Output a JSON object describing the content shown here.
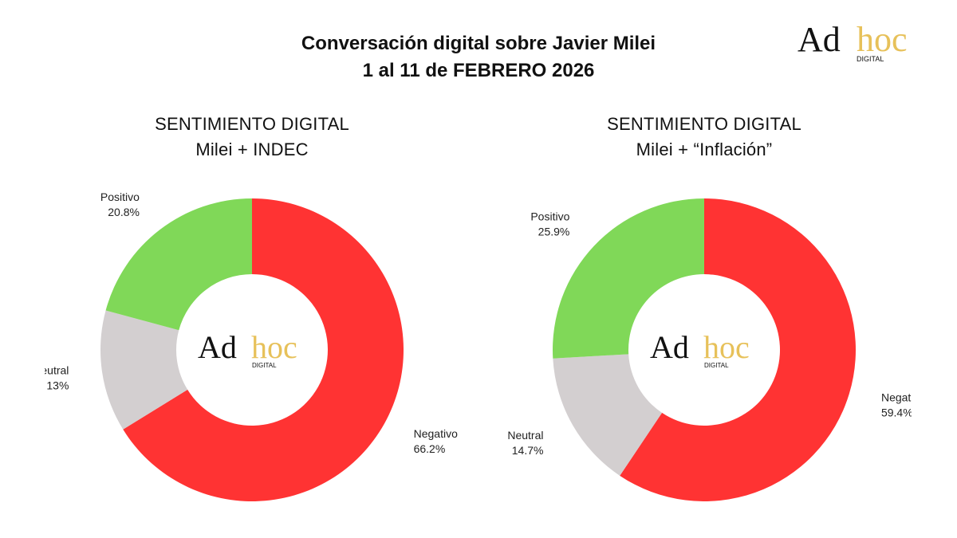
{
  "header": {
    "title_line1": "Conversación digital sobre Javier Milei",
    "title_line2": "1 al 11 de FEBRERO 2026"
  },
  "brand": {
    "word1": "Ad",
    "word2": "hoc",
    "sub": "DIGITAL",
    "color_dark": "#111111",
    "color_gold": "#e7c15a"
  },
  "colors": {
    "Positivo": "#80d858",
    "Neutral": "#d3cfd0",
    "Negativo": "#ff3333"
  },
  "chart_data": [
    {
      "type": "pie",
      "title": "SENTIMIENTO DIGITAL",
      "subtitle": "Milei + INDEC",
      "categories": [
        "Negativo",
        "Neutral",
        "Positivo"
      ],
      "values": [
        66.2,
        13,
        20.8
      ],
      "value_labels": [
        "66.2%",
        "13%",
        "20.8%"
      ]
    },
    {
      "type": "pie",
      "title": "SENTIMIENTO DIGITAL",
      "subtitle": "Milei + “Inflación”",
      "categories": [
        "Negativo",
        "Neutral",
        "Positivo"
      ],
      "values": [
        59.4,
        14.7,
        25.9
      ],
      "value_labels": [
        "59.4%",
        "14.7%",
        "25.9%"
      ]
    }
  ]
}
